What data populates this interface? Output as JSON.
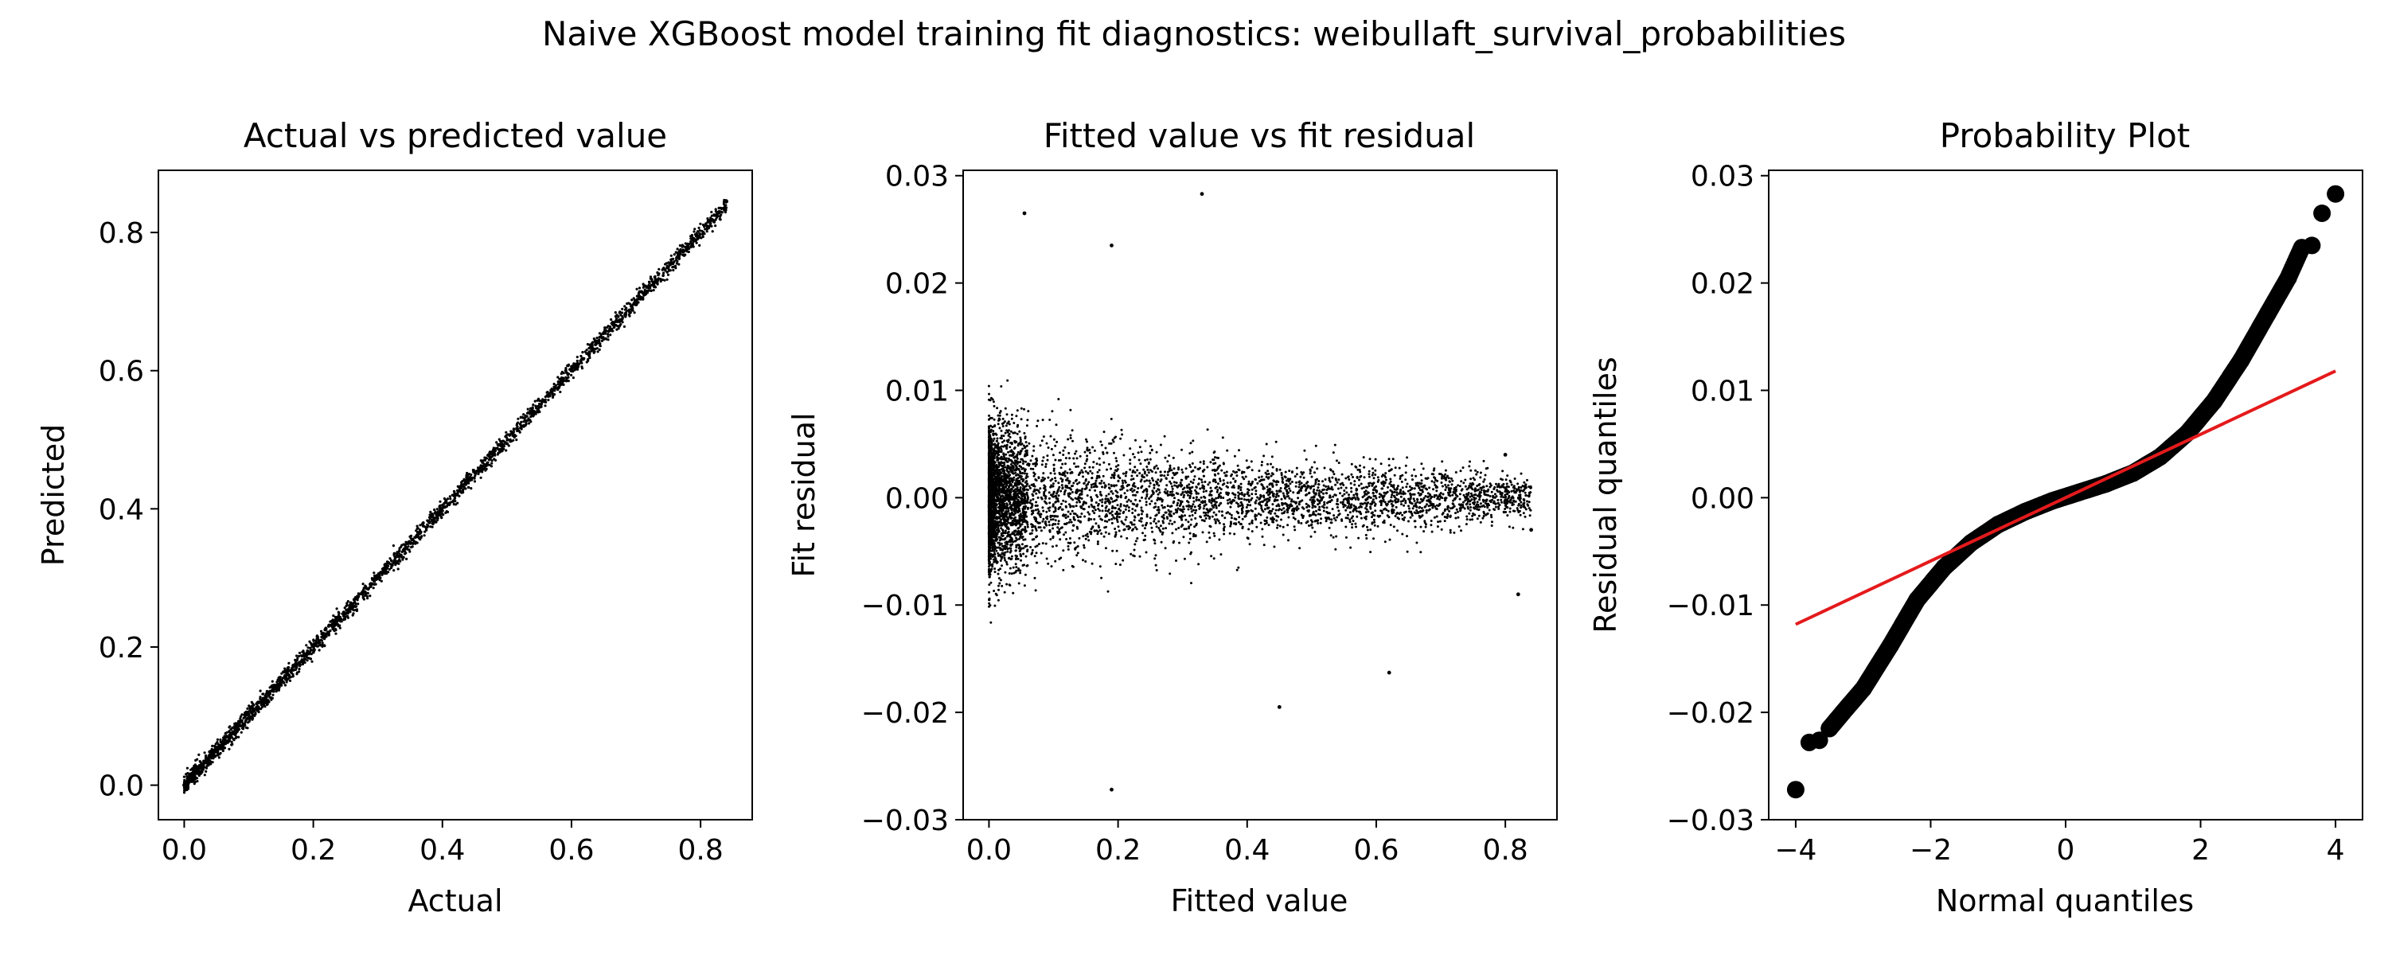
{
  "figure": {
    "suptitle": "Naive XGBoost model training fit diagnostics: weibullaft_survival_probabilities"
  },
  "colors": {
    "marker": "#000000",
    "fit_line": "#e41a1c",
    "axes": "#000000",
    "background": "#ffffff"
  },
  "chart_data": [
    {
      "type": "scatter",
      "title": "Actual vs predicted value",
      "xlabel": "Actual",
      "ylabel": "Predicted",
      "xlim": [
        -0.04,
        0.88
      ],
      "ylim": [
        -0.05,
        0.89
      ],
      "xticks": [
        0.0,
        0.2,
        0.4,
        0.6,
        0.8
      ],
      "xtick_labels": [
        "0.0",
        "0.2",
        "0.4",
        "0.6",
        "0.8"
      ],
      "yticks": [
        0.0,
        0.2,
        0.4,
        0.6,
        0.8
      ],
      "ytick_labels": [
        "0.0",
        "0.2",
        "0.4",
        "0.6",
        "0.8"
      ],
      "grid": false,
      "description_of_points": "tight cloud along y = x from about 0.0 to 0.84",
      "series": [
        {
          "marker_color": "#000000",
          "x": [
            0.0,
            0.02,
            0.05,
            0.08,
            0.11,
            0.15,
            0.19,
            0.24,
            0.3,
            0.36,
            0.42,
            0.48,
            0.54,
            0.6,
            0.66,
            0.72,
            0.78,
            0.84
          ],
          "y": [
            0.0,
            0.02,
            0.05,
            0.08,
            0.11,
            0.15,
            0.19,
            0.24,
            0.3,
            0.36,
            0.42,
            0.48,
            0.54,
            0.6,
            0.66,
            0.72,
            0.78,
            0.845
          ]
        }
      ]
    },
    {
      "type": "scatter",
      "title": "Fitted value vs fit residual",
      "xlabel": "Fitted value",
      "ylabel": "Fit residual",
      "xlim": [
        -0.04,
        0.88
      ],
      "ylim": [
        -0.03,
        0.0305
      ],
      "xticks": [
        0.0,
        0.2,
        0.4,
        0.6,
        0.8
      ],
      "xtick_labels": [
        "0.0",
        "0.2",
        "0.4",
        "0.6",
        "0.8"
      ],
      "yticks": [
        -0.03,
        -0.02,
        -0.01,
        0.0,
        0.01,
        0.02,
        0.03
      ],
      "ytick_labels": [
        "−0.03",
        "−0.02",
        "−0.01",
        "0.00",
        "0.01",
        "0.02",
        "0.03"
      ],
      "grid": false,
      "notable_points": [
        {
          "x": 0.055,
          "y": 0.0265
        },
        {
          "x": 0.33,
          "y": 0.0283
        },
        {
          "x": 0.19,
          "y": -0.0272
        },
        {
          "x": 0.19,
          "y": 0.0235
        },
        {
          "x": 0.45,
          "y": -0.0195
        },
        {
          "x": 0.62,
          "y": -0.0163
        },
        {
          "x": 0.82,
          "y": -0.009
        },
        {
          "x": 0.84,
          "y": -0.003
        },
        {
          "x": 0.8,
          "y": 0.004
        }
      ],
      "residual_band": {
        "x": [
          0.0,
          0.1,
          0.2,
          0.3,
          0.4,
          0.5,
          0.6,
          0.7,
          0.8
        ],
        "spread_approx": [
          0.01,
          0.009,
          0.008,
          0.007,
          0.006,
          0.005,
          0.005,
          0.004,
          0.003
        ]
      }
    },
    {
      "type": "scatter",
      "title": "Probability Plot",
      "xlabel": "Normal quantiles",
      "ylabel": "Residual quantiles",
      "xlim": [
        -4.4,
        4.4
      ],
      "ylim": [
        -0.03,
        0.0305
      ],
      "xticks": [
        -4,
        -2,
        0,
        2,
        4
      ],
      "xtick_labels": [
        "−4",
        "−2",
        "0",
        "2",
        "4"
      ],
      "yticks": [
        -0.03,
        -0.02,
        -0.01,
        0.0,
        0.01,
        0.02,
        0.03
      ],
      "ytick_labels": [
        "−0.03",
        "−0.02",
        "−0.01",
        "0.00",
        "0.01",
        "0.02",
        "0.03"
      ],
      "grid": false,
      "series": [
        {
          "marker_color": "#000000",
          "x": [
            -4.0,
            -3.8,
            -3.65,
            -3.5,
            -3.3,
            -3.0,
            -2.6,
            -2.2,
            -1.8,
            -1.4,
            -1.0,
            -0.6,
            -0.2,
            0.2,
            0.6,
            1.0,
            1.4,
            1.8,
            2.2,
            2.6,
            3.0,
            3.3,
            3.5,
            3.65,
            3.8,
            4.0
          ],
          "y": [
            -0.0272,
            -0.0228,
            -0.0226,
            -0.0215,
            -0.02,
            -0.0178,
            -0.0138,
            -0.0095,
            -0.0065,
            -0.0042,
            -0.0025,
            -0.0013,
            -0.0003,
            0.0005,
            0.0013,
            0.0023,
            0.0038,
            0.006,
            0.009,
            0.0128,
            0.0172,
            0.0205,
            0.0233,
            0.0235,
            0.0265,
            0.0283
          ]
        },
        {
          "line_color": "#e41a1c",
          "x": [
            -4.0,
            4.0
          ],
          "y": [
            -0.0118,
            0.0118
          ]
        }
      ]
    }
  ]
}
